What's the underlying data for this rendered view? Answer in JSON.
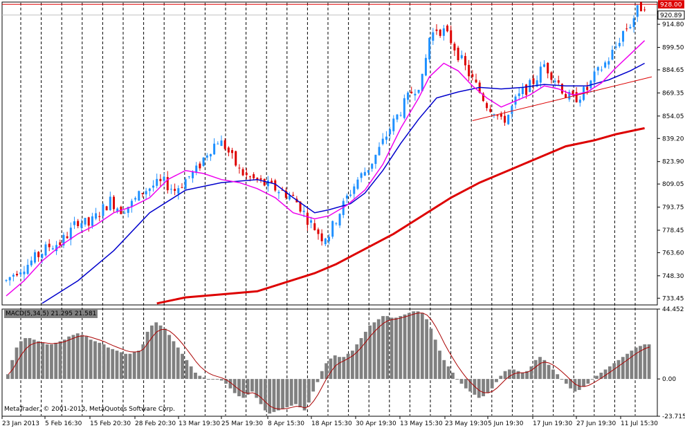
{
  "chart_data": {
    "type": "candlestick",
    "price_axis_labels": [
      "914.80",
      "899.50",
      "884.65",
      "869.35",
      "854.05",
      "839.20",
      "823.90",
      "809.05",
      "793.75",
      "778.45",
      "763.60",
      "748.30",
      "733.45"
    ],
    "price_range": [
      729.0,
      929.5
    ],
    "current_price_tag": "928.00",
    "bid_tag": "920.89",
    "time_labels": [
      "23 Jan 2013",
      "5 Feb 16:30",
      "15 Feb 20:30",
      "28 Feb 20:30",
      "13 Mar 19:30",
      "25 Mar 19:30",
      "8 Apr 15:30",
      "18 Apr 15:30",
      "30 Apr 19:30",
      "13 May 15:30",
      "23 May 19:30",
      "5 Jun 19:30",
      "17 Jun 19:30",
      "27 Jun 19:30",
      "11 Jul 15:30"
    ],
    "close_path": [
      [
        0,
        745
      ],
      [
        3,
        752
      ],
      [
        6,
        756
      ],
      [
        9,
        762
      ],
      [
        12,
        768
      ],
      [
        15,
        770
      ],
      [
        18,
        778
      ],
      [
        20,
        785
      ],
      [
        23,
        782
      ],
      [
        26,
        790
      ],
      [
        29,
        798
      ],
      [
        32,
        792
      ],
      [
        35,
        796
      ],
      [
        38,
        804
      ],
      [
        41,
        808
      ],
      [
        44,
        810
      ],
      [
        47,
        805
      ],
      [
        50,
        812
      ],
      [
        53,
        818
      ],
      [
        56,
        830
      ],
      [
        59,
        838
      ],
      [
        61,
        834
      ],
      [
        63,
        826
      ],
      [
        65,
        818
      ],
      [
        67,
        814
      ],
      [
        69,
        812
      ],
      [
        71,
        810
      ],
      [
        73,
        808
      ],
      [
        75,
        806
      ],
      [
        77,
        804
      ],
      [
        80,
        800
      ],
      [
        82,
        794
      ],
      [
        84,
        786
      ],
      [
        86,
        780
      ],
      [
        88,
        774
      ],
      [
        90,
        776
      ],
      [
        92,
        786
      ],
      [
        95,
        800
      ],
      [
        98,
        812
      ],
      [
        101,
        820
      ],
      [
        104,
        832
      ],
      [
        107,
        846
      ],
      [
        110,
        858
      ],
      [
        113,
        870
      ],
      [
        116,
        878
      ],
      [
        118,
        906
      ],
      [
        120,
        912
      ],
      [
        122,
        910
      ],
      [
        124,
        904
      ],
      [
        126,
        895
      ],
      [
        128,
        886
      ],
      [
        130,
        878
      ],
      [
        132,
        870
      ],
      [
        134,
        862
      ],
      [
        136,
        858
      ],
      [
        138,
        850
      ],
      [
        140,
        855
      ],
      [
        142,
        864
      ],
      [
        144,
        870
      ],
      [
        146,
        874
      ],
      [
        148,
        880
      ],
      [
        150,
        888
      ],
      [
        152,
        882
      ],
      [
        154,
        876
      ],
      [
        156,
        868
      ],
      [
        158,
        865
      ],
      [
        160,
        868
      ],
      [
        162,
        872
      ],
      [
        164,
        880
      ],
      [
        166,
        886
      ],
      [
        168,
        892
      ],
      [
        170,
        900
      ],
      [
        172,
        910
      ],
      [
        174,
        915
      ],
      [
        176,
        924
      ],
      [
        178,
        928
      ]
    ],
    "ma_fast_points": [
      [
        0,
        735
      ],
      [
        5,
        745
      ],
      [
        10,
        758
      ],
      [
        15,
        768
      ],
      [
        20,
        776
      ],
      [
        25,
        782
      ],
      [
        30,
        790
      ],
      [
        35,
        794
      ],
      [
        40,
        800
      ],
      [
        45,
        812
      ],
      [
        50,
        818
      ],
      [
        55,
        816
      ],
      [
        60,
        812
      ],
      [
        65,
        810
      ],
      [
        70,
        806
      ],
      [
        75,
        800
      ],
      [
        80,
        790
      ],
      [
        86,
        786
      ],
      [
        90,
        788
      ],
      [
        95,
        795
      ],
      [
        100,
        805
      ],
      [
        105,
        822
      ],
      [
        110,
        846
      ],
      [
        115,
        866
      ],
      [
        118,
        880
      ],
      [
        122,
        889
      ],
      [
        126,
        884
      ],
      [
        130,
        874
      ],
      [
        134,
        866
      ],
      [
        138,
        860
      ],
      [
        142,
        864
      ],
      [
        146,
        868
      ],
      [
        150,
        874
      ],
      [
        154,
        872
      ],
      [
        158,
        868
      ],
      [
        162,
        870
      ],
      [
        166,
        876
      ],
      [
        170,
        886
      ],
      [
        174,
        895
      ],
      [
        178,
        904
      ]
    ],
    "ma_slow_points": [
      [
        10,
        730
      ],
      [
        20,
        745
      ],
      [
        30,
        765
      ],
      [
        40,
        790
      ],
      [
        50,
        805
      ],
      [
        60,
        810
      ],
      [
        70,
        812
      ],
      [
        75,
        809
      ],
      [
        80,
        800
      ],
      [
        86,
        790
      ],
      [
        90,
        792
      ],
      [
        96,
        796
      ],
      [
        100,
        803
      ],
      [
        105,
        818
      ],
      [
        110,
        836
      ],
      [
        115,
        852
      ],
      [
        120,
        866
      ],
      [
        126,
        870
      ],
      [
        132,
        873
      ],
      [
        138,
        872
      ],
      [
        144,
        873
      ],
      [
        150,
        875
      ],
      [
        156,
        874
      ],
      [
        162,
        874
      ],
      [
        168,
        878
      ],
      [
        174,
        884
      ],
      [
        178,
        889
      ]
    ],
    "ma_200_points": [
      [
        42,
        730
      ],
      [
        50,
        734
      ],
      [
        60,
        736
      ],
      [
        70,
        738
      ],
      [
        78,
        744
      ],
      [
        86,
        750
      ],
      [
        92,
        756
      ],
      [
        100,
        766
      ],
      [
        108,
        776
      ],
      [
        116,
        788
      ],
      [
        124,
        800
      ],
      [
        132,
        810
      ],
      [
        140,
        818
      ],
      [
        148,
        826
      ],
      [
        156,
        834
      ],
      [
        164,
        838
      ],
      [
        170,
        842
      ],
      [
        178,
        846
      ]
    ],
    "trendline_points": [
      [
        130,
        851
      ],
      [
        180,
        880
      ]
    ],
    "resistance_level": 928.0,
    "macd": {
      "label": "MACD(5,34,5) 21.295 21.581",
      "axis_labels": [
        "44.452",
        "0.00",
        "-23.715"
      ],
      "range": [
        -23.715,
        44.452
      ],
      "histogram": [
        3,
        12,
        20,
        24,
        26,
        26,
        25,
        24,
        23,
        22,
        22,
        23,
        24,
        25,
        27,
        28,
        29,
        28,
        27,
        25,
        24,
        23,
        22,
        20,
        19,
        18,
        17,
        16,
        16,
        17,
        18,
        22,
        30,
        34,
        36,
        34,
        32,
        28,
        24,
        20,
        16,
        12,
        8,
        4,
        2,
        1,
        0,
        0,
        0,
        -1,
        -3,
        -6,
        -9,
        -11,
        -12,
        -10,
        -8,
        -12,
        -16,
        -20,
        -22,
        -21,
        -20,
        -19,
        -18,
        -17,
        -16,
        -18,
        -20,
        -15,
        -8,
        -2,
        5,
        10,
        13,
        15,
        14,
        14,
        16,
        18,
        22,
        26,
        30,
        34,
        36,
        38,
        40,
        40,
        39,
        39,
        40,
        41,
        42,
        43,
        43,
        42,
        38,
        32,
        25,
        18,
        12,
        8,
        4,
        0,
        -3,
        -6,
        -8,
        -10,
        -12,
        -11,
        -9,
        -6,
        -2,
        2,
        5,
        6,
        6,
        5,
        4,
        5,
        8,
        12,
        14,
        12,
        9,
        6,
        3,
        0,
        -3,
        -6,
        -8,
        -7,
        -5,
        -3,
        0,
        2,
        4,
        6,
        8,
        10,
        12,
        14,
        16,
        18,
        20,
        21,
        22,
        22
      ]
    }
  },
  "footer": {
    "copyright": "MetaTrader, © 2001-2013, MetaQuotes Software Corp."
  },
  "colors": {
    "bull": "#1e90ff",
    "bear": "#dd0000",
    "ma_fast": "#ee00ee",
    "ma_slow": "#0000cc",
    "ma_200": "#dd0000",
    "hist": "#808080",
    "signal": "#aa0000"
  }
}
